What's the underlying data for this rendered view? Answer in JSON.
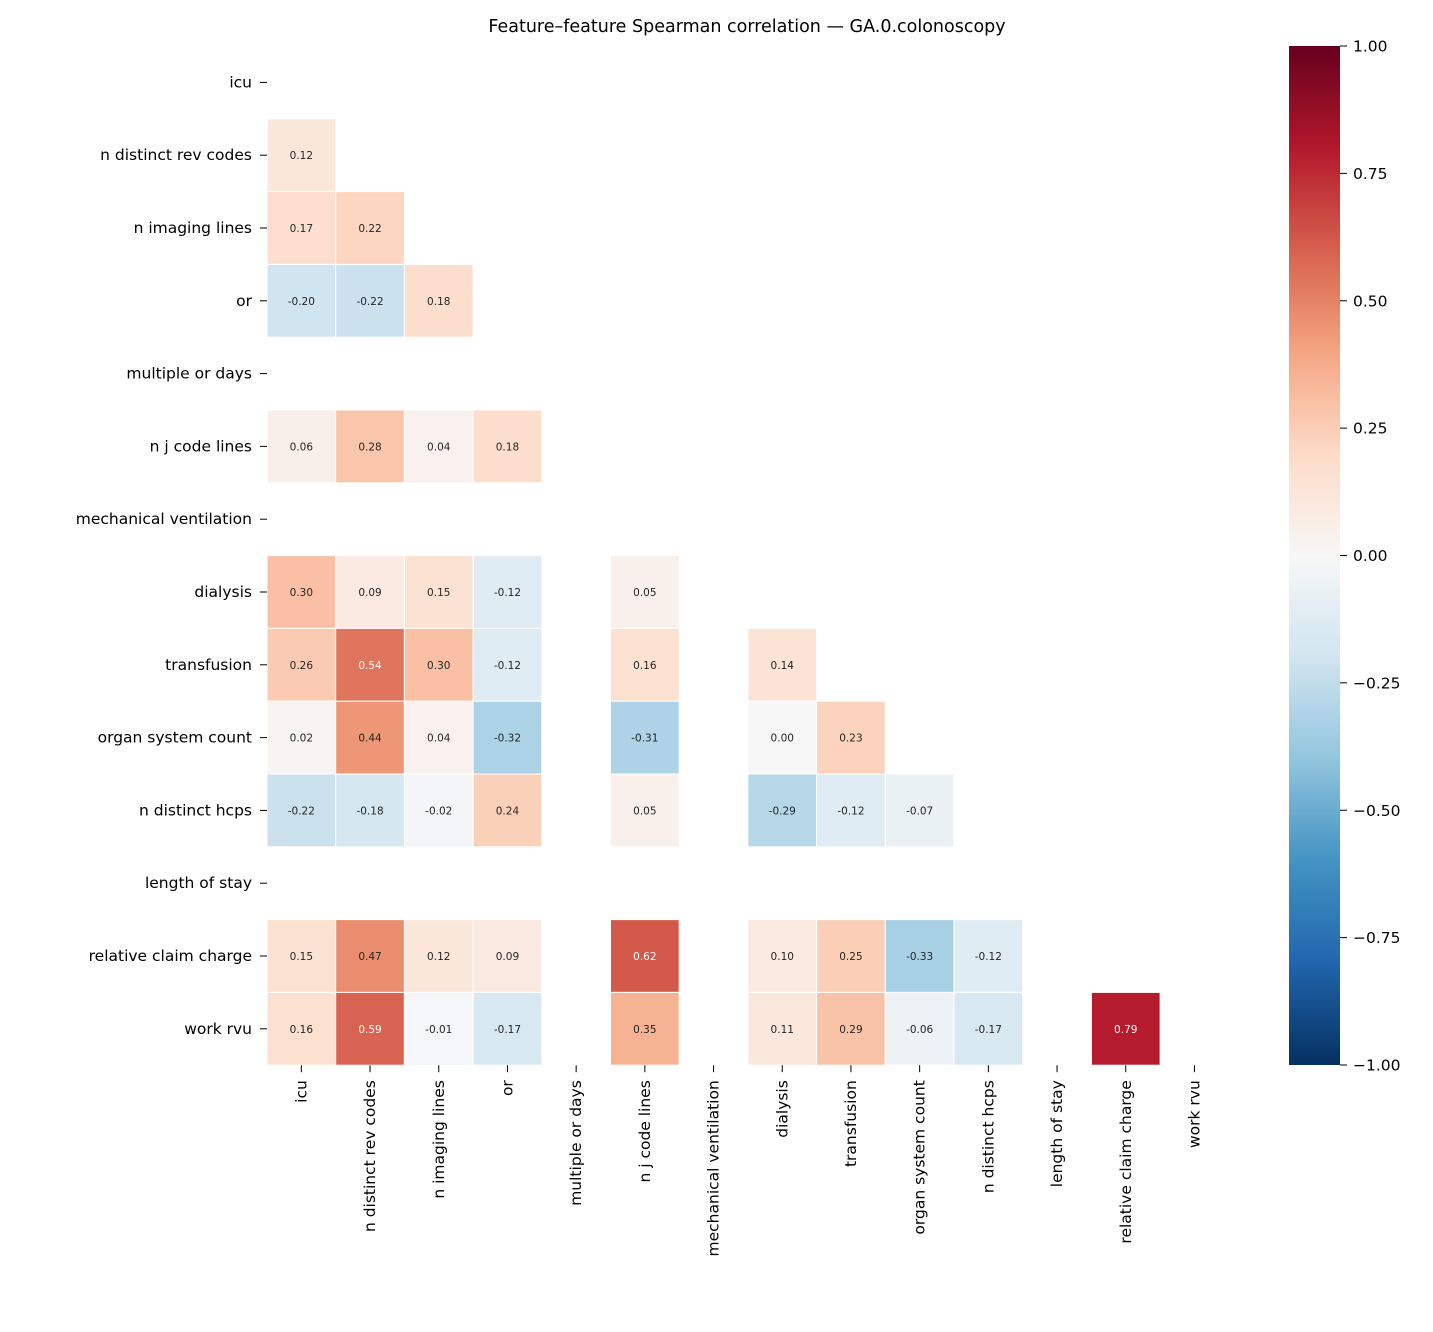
{
  "chart_data": {
    "type": "heatmap",
    "title": "Feature–feature Spearman correlation — GA.0.colonoscopy",
    "labels": [
      "icu",
      "n distinct rev codes",
      "n imaging lines",
      "or",
      "multiple or days",
      "n j code lines",
      "mechanical ventilation",
      "dialysis",
      "transfusion",
      "organ system count",
      "n distinct hcps",
      "length of stay",
      "relative claim charge",
      "work rvu"
    ],
    "lower_triangle_values": [
      [],
      [
        0.12
      ],
      [
        0.17,
        0.22
      ],
      [
        -0.2,
        -0.22,
        0.18
      ],
      [
        null,
        null,
        null,
        null
      ],
      [
        0.06,
        0.28,
        0.04,
        0.18,
        null
      ],
      [
        null,
        null,
        null,
        null,
        null,
        null
      ],
      [
        0.3,
        0.09,
        0.15,
        -0.12,
        null,
        0.05,
        null
      ],
      [
        0.26,
        0.54,
        0.3,
        -0.12,
        null,
        0.16,
        null,
        0.14
      ],
      [
        0.02,
        0.44,
        0.04,
        -0.32,
        null,
        -0.31,
        null,
        0.0,
        0.23
      ],
      [
        -0.22,
        -0.18,
        -0.02,
        0.24,
        null,
        0.05,
        null,
        -0.29,
        -0.12,
        -0.07
      ],
      [
        null,
        null,
        null,
        null,
        null,
        null,
        null,
        null,
        null,
        null,
        null
      ],
      [
        0.15,
        0.47,
        0.12,
        0.09,
        null,
        0.62,
        null,
        0.1,
        0.25,
        -0.33,
        -0.12,
        null
      ],
      [
        0.16,
        0.59,
        -0.01,
        -0.17,
        null,
        0.35,
        null,
        0.11,
        0.29,
        -0.06,
        -0.17,
        null,
        0.79
      ]
    ],
    "colormap": "RdBu_r",
    "colormap_stops": [
      "#053061",
      "#2166ac",
      "#4393c3",
      "#92c5de",
      "#d1e5f0",
      "#f7f7f7",
      "#fddbc7",
      "#f4a582",
      "#d6604d",
      "#b2182b",
      "#67001f"
    ],
    "vmin": -1,
    "vmax": 1,
    "colorbar_ticks": [
      "−1.00",
      "−0.75",
      "−0.50",
      "−0.25",
      "0.00",
      "0.25",
      "0.50",
      "0.75",
      "1.00"
    ],
    "colorbar_tick_values": [
      -1,
      -0.75,
      -0.5,
      -0.25,
      0,
      0.25,
      0.5,
      0.75,
      1
    ],
    "legend": "colorbar right",
    "mask": "upper triangle and diagonal"
  }
}
